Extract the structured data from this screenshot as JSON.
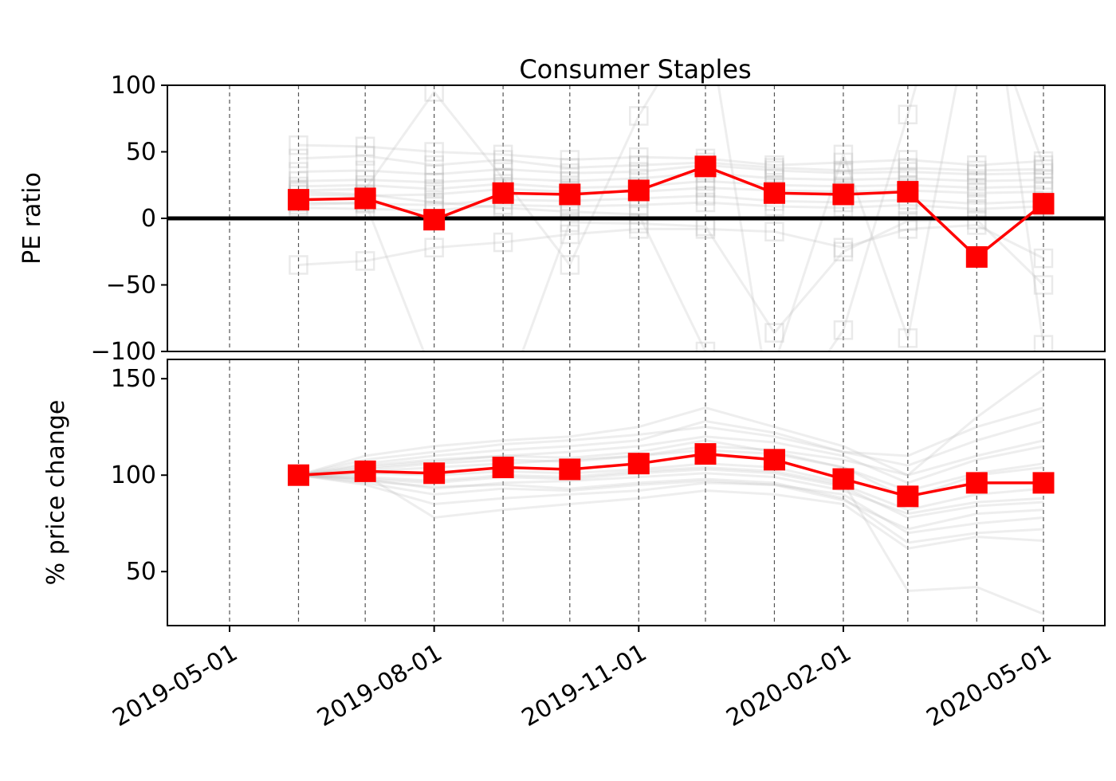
{
  "title": "Consumer Staples",
  "colors": {
    "highlight": "#ff0000",
    "background_lines": "#bbbbbb",
    "zero_line": "#000000",
    "grid": "#555555"
  },
  "chart_data": [
    {
      "type": "line",
      "title": "Consumer Staples",
      "ylabel": "PE ratio",
      "xlabel": "",
      "x": [
        "2019-06-01",
        "2019-07-01",
        "2019-08-01",
        "2019-09-01",
        "2019-10-01",
        "2019-11-01",
        "2019-12-01",
        "2020-01-01",
        "2020-02-01",
        "2020-03-01",
        "2020-04-01",
        "2020-05-01"
      ],
      "ylim": [
        -100,
        100
      ],
      "yticks": [
        100,
        50,
        0,
        -50,
        -100
      ],
      "ytick_labels": [
        "100",
        "50",
        "0",
        "−50",
        "−100"
      ],
      "grid": "vertical dashed at monthly dates",
      "zero_line": true,
      "series": [
        {
          "values": [
            14,
            15,
            -1,
            19,
            18,
            21,
            39,
            19,
            18,
            20,
            -29,
            11
          ],
          "color": "#ff0000",
          "marker": "square"
        }
      ],
      "background_series": [
        [
          18,
          17,
          18,
          22,
          20,
          20,
          23,
          21,
          20,
          21,
          19,
          20
        ],
        [
          24,
          25,
          22,
          26,
          23,
          24,
          28,
          25,
          24,
          25,
          23,
          24
        ],
        [
          28,
          29,
          27,
          30,
          28,
          30,
          34,
          30,
          29,
          30,
          28,
          29
        ],
        [
          12,
          11,
          10,
          14,
          13,
          15,
          17,
          13,
          12,
          14,
          11,
          13
        ],
        [
          35,
          36,
          33,
          37,
          34,
          35,
          40,
          36,
          34,
          35,
          33,
          34
        ],
        [
          8,
          7,
          6,
          10,
          9,
          10,
          12,
          9,
          8,
          10,
          7,
          9
        ],
        [
          55,
          54,
          50,
          48,
          44,
          46,
          45,
          40,
          42,
          44,
          40,
          43
        ],
        [
          -35,
          -32,
          -22,
          -18,
          -12,
          -8,
          -8,
          -10,
          -22,
          -8,
          -5,
          -30
        ],
        [
          21,
          22,
          95,
          30,
          -35,
          77,
          160,
          -160,
          -84,
          78,
          260,
          -95
        ],
        [
          45,
          47,
          40,
          44,
          38,
          40,
          42,
          38,
          36,
          38,
          36,
          37
        ],
        [
          20,
          18,
          12,
          8,
          5,
          3,
          -100,
          -110,
          48,
          -90,
          180,
          40
        ],
        [
          10,
          12,
          -120,
          -140,
          -3,
          -4,
          -6,
          -86,
          -25,
          -2,
          -1,
          -50
        ]
      ]
    },
    {
      "type": "line",
      "ylabel": "% price change",
      "xlabel": "",
      "x": [
        "2019-06-01",
        "2019-07-01",
        "2019-08-01",
        "2019-09-01",
        "2019-10-01",
        "2019-11-01",
        "2019-12-01",
        "2020-01-01",
        "2020-02-01",
        "2020-03-01",
        "2020-04-01",
        "2020-05-01"
      ],
      "ylim": [
        22,
        160
      ],
      "yticks": [
        150,
        100,
        50
      ],
      "ytick_labels": [
        "150",
        "100",
        "50"
      ],
      "xticks": [
        "2019-05-01",
        "2019-08-01",
        "2019-11-01",
        "2020-02-01",
        "2020-05-01"
      ],
      "grid": "vertical dashed at monthly dates",
      "series": [
        {
          "values": [
            100,
            102,
            101,
            104,
            103,
            106,
            111,
            108,
            98,
            89,
            96,
            96
          ],
          "color": "#ff0000",
          "marker": "square"
        }
      ],
      "background_series": [
        [
          100,
          105,
          108,
          110,
          109,
          112,
          118,
          112,
          104,
          88,
          100,
          104
        ],
        [
          100,
          98,
          93,
          96,
          97,
          99,
          101,
          99,
          92,
          80,
          86,
          88
        ],
        [
          100,
          108,
          112,
          116,
          118,
          121,
          125,
          120,
          112,
          110,
          125,
          135
        ],
        [
          100,
          95,
          85,
          88,
          90,
          92,
          96,
          95,
          90,
          70,
          75,
          78
        ],
        [
          100,
          102,
          104,
          106,
          108,
          110,
          115,
          113,
          108,
          100,
          110,
          118
        ],
        [
          100,
          97,
          94,
          95,
          93,
          96,
          98,
          96,
          88,
          65,
          70,
          72
        ],
        [
          100,
          110,
          115,
          118,
          120,
          125,
          135,
          125,
          115,
          100,
          130,
          155
        ],
        [
          100,
          101,
          100,
          102,
          101,
          103,
          106,
          104,
          96,
          40,
          42,
          28
        ],
        [
          100,
          99,
          97,
          100,
          99,
          102,
          104,
          102,
          95,
          82,
          90,
          93
        ],
        [
          100,
          103,
          106,
          108,
          107,
          110,
          113,
          111,
          104,
          92,
          101,
          106
        ],
        [
          100,
          96,
          90,
          93,
          92,
          95,
          97,
          95,
          87,
          72,
          80,
          82
        ],
        [
          100,
          104,
          107,
          110,
          112,
          115,
          120,
          117,
          110,
          96,
          108,
          115
        ],
        [
          100,
          100,
          78,
          82,
          85,
          88,
          92,
          90,
          85,
          62,
          68,
          66
        ],
        [
          100,
          106,
          110,
          113,
          115,
          118,
          128,
          122,
          112,
          105,
          118,
          128
        ],
        [
          100,
          98,
          96,
          99,
          98,
          101,
          103,
          101,
          94,
          78,
          84,
          86
        ]
      ]
    }
  ]
}
